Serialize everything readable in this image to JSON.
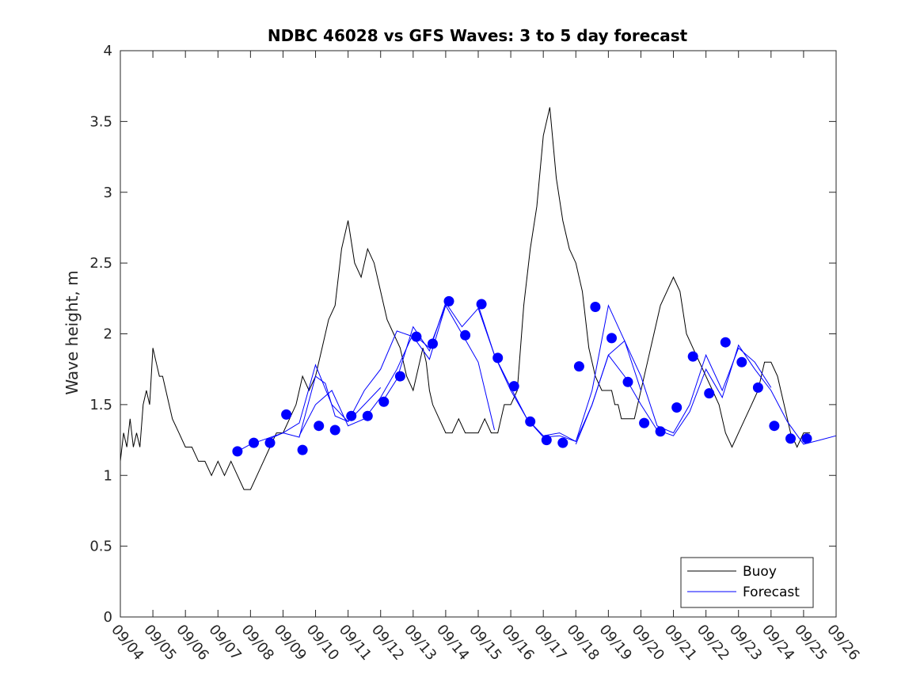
{
  "chart_data": {
    "type": "line",
    "title": "NDBC 46028 vs GFS Waves: 3 to 5 day forecast",
    "xlabel": "",
    "ylabel": "Wave height, m",
    "xlim": [
      0,
      22
    ],
    "ylim": [
      0,
      4
    ],
    "yticks": [
      0,
      0.5,
      1,
      1.5,
      2,
      2.5,
      3,
      3.5,
      4
    ],
    "ytick_labels": [
      "0",
      "0.5",
      "1",
      "1.5",
      "2",
      "2.5",
      "3",
      "3.5",
      "4"
    ],
    "xtick_labels": [
      "09/04",
      "09/05",
      "09/06",
      "09/07",
      "09/08",
      "09/09",
      "09/10",
      "09/11",
      "09/12",
      "09/13",
      "09/14",
      "09/15",
      "09/16",
      "09/17",
      "09/18",
      "09/19",
      "09/20",
      "09/21",
      "09/22",
      "09/23",
      "09/24",
      "09/25",
      "09/26"
    ],
    "legend": {
      "position": "bottom-right",
      "entries": [
        "Buoy",
        "Forecast"
      ]
    },
    "colors": {
      "buoy": "#000000",
      "forecast": "#0000ff"
    },
    "buoy": {
      "name": "Buoy",
      "x": [
        0,
        0.1,
        0.2,
        0.3,
        0.4,
        0.5,
        0.6,
        0.7,
        0.8,
        0.9,
        1.0,
        1.1,
        1.2,
        1.3,
        1.4,
        1.5,
        1.6,
        1.8,
        2.0,
        2.2,
        2.4,
        2.6,
        2.8,
        3.0,
        3.2,
        3.4,
        3.6,
        3.8,
        4.0,
        4.2,
        4.4,
        4.6,
        4.8,
        5.0,
        5.2,
        5.4,
        5.6,
        5.8,
        6.0,
        6.2,
        6.4,
        6.6,
        6.8,
        7.0,
        7.2,
        7.4,
        7.6,
        7.8,
        8.0,
        8.2,
        8.4,
        8.6,
        8.8,
        9.0,
        9.1,
        9.2,
        9.3,
        9.4,
        9.5,
        9.6,
        9.8,
        10.0,
        10.2,
        10.4,
        10.6,
        10.8,
        11.0,
        11.2,
        11.4,
        11.6,
        11.8,
        12.0,
        12.2,
        12.4,
        12.6,
        12.8,
        13.0,
        13.2,
        13.4,
        13.6,
        13.8,
        14.0,
        14.2,
        14.4,
        14.6,
        14.8,
        15.0,
        15.1,
        15.2,
        15.3,
        15.4,
        15.5,
        15.6,
        15.7,
        15.8,
        16.0,
        16.2,
        16.4,
        16.6,
        16.8,
        17.0,
        17.2,
        17.4,
        17.6,
        17.8,
        18.0,
        18.2,
        18.4,
        18.6,
        18.8,
        19.0,
        19.2,
        19.4,
        19.6,
        19.8,
        20.0,
        20.2,
        20.4,
        20.6,
        20.8,
        21.0,
        21.2
      ],
      "y": [
        1.1,
        1.3,
        1.2,
        1.4,
        1.2,
        1.3,
        1.2,
        1.5,
        1.6,
        1.5,
        1.9,
        1.8,
        1.7,
        1.7,
        1.6,
        1.5,
        1.4,
        1.3,
        1.2,
        1.2,
        1.1,
        1.1,
        1.0,
        1.1,
        1.0,
        1.1,
        1.0,
        0.9,
        0.9,
        1.0,
        1.1,
        1.2,
        1.3,
        1.3,
        1.4,
        1.5,
        1.7,
        1.6,
        1.7,
        1.9,
        2.1,
        2.2,
        2.6,
        2.8,
        2.5,
        2.4,
        2.6,
        2.5,
        2.3,
        2.1,
        2.0,
        1.9,
        1.7,
        1.6,
        1.7,
        1.8,
        1.9,
        1.8,
        1.6,
        1.5,
        1.4,
        1.3,
        1.3,
        1.4,
        1.3,
        1.3,
        1.3,
        1.4,
        1.3,
        1.3,
        1.5,
        1.5,
        1.6,
        2.2,
        2.6,
        2.9,
        3.4,
        3.6,
        3.1,
        2.8,
        2.6,
        2.5,
        2.3,
        1.9,
        1.7,
        1.6,
        1.6,
        1.6,
        1.5,
        1.5,
        1.4,
        1.4,
        1.4,
        1.4,
        1.4,
        1.6,
        1.8,
        2.0,
        2.2,
        2.3,
        2.4,
        2.3,
        2.0,
        1.9,
        1.8,
        1.7,
        1.6,
        1.5,
        1.3,
        1.2,
        1.3,
        1.4,
        1.5,
        1.6,
        1.8,
        1.8,
        1.7,
        1.5,
        1.3,
        1.2,
        1.3,
        1.3
      ]
    },
    "forecast_runs": [
      {
        "x": [
          3.6,
          4.0,
          4.5,
          5.0,
          5.5,
          6.0,
          6.3,
          6.6,
          7.0,
          7.5,
          8.0
        ],
        "y": [
          1.17,
          1.22,
          1.26,
          1.3,
          1.27,
          1.7,
          1.65,
          1.42,
          1.38,
          1.5,
          1.62
        ]
      },
      {
        "x": [
          4.6,
          5.0,
          5.5,
          6.0,
          6.5,
          7.0,
          7.5,
          8.0,
          8.5,
          9.0,
          9.5,
          10.0
        ],
        "y": [
          1.26,
          1.3,
          1.37,
          1.78,
          1.5,
          1.38,
          1.6,
          1.75,
          2.02,
          1.98,
          1.82,
          2.2
        ]
      },
      {
        "x": [
          5.5,
          6.0,
          6.5,
          7.0,
          7.5,
          8.0,
          8.5,
          9.0,
          9.5,
          10.0,
          10.5,
          11.0,
          11.5
        ],
        "y": [
          1.28,
          1.5,
          1.6,
          1.35,
          1.4,
          1.55,
          1.75,
          2.0,
          1.9,
          2.2,
          2.0,
          1.8,
          1.32
        ]
      },
      {
        "x": [
          8.0,
          8.5,
          9.0,
          9.5,
          10.0,
          10.5,
          11.0,
          11.5,
          12.0,
          12.5,
          13.0,
          13.5,
          14.0,
          14.5,
          15.0,
          15.5,
          16.0
        ],
        "y": [
          1.5,
          1.68,
          2.05,
          1.88,
          2.22,
          2.05,
          2.18,
          1.85,
          1.6,
          1.4,
          1.28,
          1.3,
          1.24,
          1.5,
          1.85,
          1.95,
          1.6
        ]
      },
      {
        "x": [
          11.0,
          11.5,
          12.0,
          12.5,
          13.0,
          13.5,
          14.0,
          14.5,
          15.0,
          15.5,
          16.0,
          16.5,
          17.0,
          17.5,
          18.0,
          18.5,
          19.0,
          19.5,
          20.0
        ],
        "y": [
          2.2,
          1.85,
          1.62,
          1.4,
          1.27,
          1.28,
          1.24,
          1.6,
          2.2,
          1.95,
          1.7,
          1.35,
          1.3,
          1.5,
          1.85,
          1.6,
          1.9,
          1.8,
          1.62
        ]
      },
      {
        "x": [
          14.0,
          14.5,
          15.0,
          15.5,
          16.0,
          16.5,
          17.0,
          17.5,
          18.0,
          18.5,
          19.0,
          19.5,
          20.0,
          20.5,
          21.0,
          21.5,
          22.0
        ],
        "y": [
          1.22,
          1.5,
          1.85,
          1.7,
          1.5,
          1.32,
          1.28,
          1.45,
          1.75,
          1.55,
          1.92,
          1.75,
          1.6,
          1.38,
          1.22,
          1.25,
          1.28
        ]
      }
    ],
    "forecast_markers": {
      "x": [
        3.6,
        4.1,
        4.6,
        5.1,
        5.6,
        6.1,
        6.6,
        7.1,
        7.6,
        8.1,
        8.6,
        9.1,
        9.6,
        10.1,
        10.6,
        11.1,
        11.6,
        12.1,
        12.6,
        13.1,
        13.6,
        14.1,
        14.6,
        15.1,
        15.6,
        16.1,
        16.6,
        17.1,
        17.6,
        18.1,
        18.6,
        19.1,
        19.6,
        20.1,
        20.6,
        21.1
      ],
      "y": [
        1.17,
        1.23,
        1.23,
        1.43,
        1.18,
        1.35,
        1.32,
        1.42,
        1.42,
        1.52,
        1.7,
        1.98,
        1.93,
        2.23,
        1.99,
        2.21,
        1.83,
        1.63,
        1.38,
        1.25,
        1.23,
        1.77,
        2.19,
        1.97,
        1.66,
        1.37,
        1.31,
        1.48,
        1.84,
        1.58,
        1.94,
        1.8,
        1.62,
        1.35,
        1.26,
        1.26
      ]
    }
  }
}
